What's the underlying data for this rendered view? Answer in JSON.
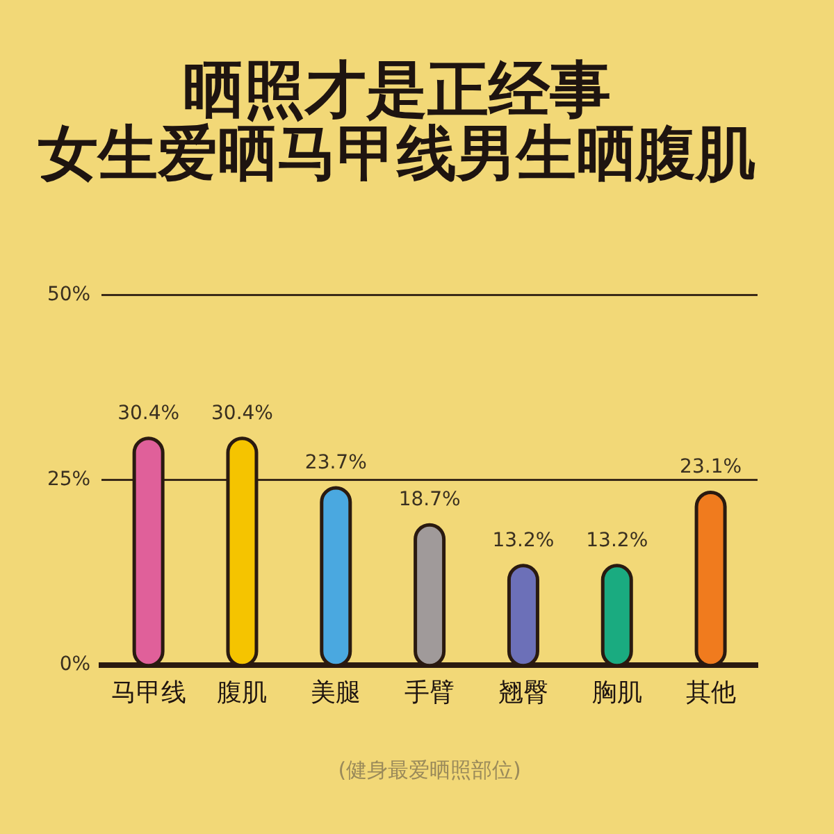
{
  "chart_data": {
    "type": "bar",
    "title": "晒照才是正经事",
    "subtitle": "女生爱晒马甲线男生晒腹肌",
    "xlabel": "(健身最爱晒照部位)",
    "categories": [
      "马甲线",
      "腹肌",
      "美腿",
      "手臂",
      "翘臀",
      "胸肌",
      "其他"
    ],
    "values": [
      30.4,
      30.4,
      23.7,
      18.7,
      13.2,
      13.2,
      23.1
    ],
    "colors": [
      "#e0609a",
      "#f5c400",
      "#4aa8e0",
      "#a09a9a",
      "#6c70b8",
      "#1aab80",
      "#f07b1e"
    ],
    "value_labels": [
      "30.4%",
      "30.4%",
      "23.7%",
      "18.7%",
      "13.2%",
      "13.2%",
      "23.1%"
    ],
    "ylim": [
      0,
      50
    ],
    "yticks": [
      {
        "value": 0,
        "label": "0%"
      },
      {
        "value": 25,
        "label": "25%"
      },
      {
        "value": 50,
        "label": "50%"
      }
    ],
    "grid": "y",
    "legend": false
  }
}
